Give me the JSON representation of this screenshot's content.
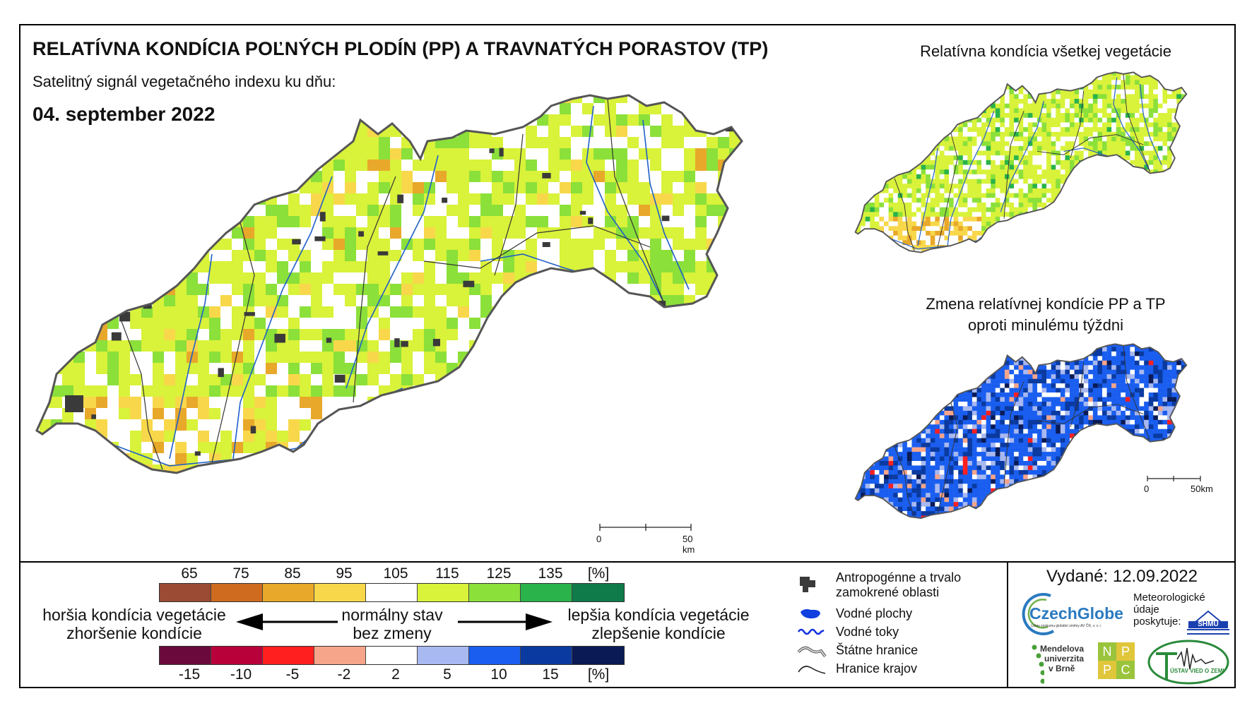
{
  "header": {
    "title": "RELATÍVNA KONDÍCIA POĽNÝCH PLODÍN (PP) A TRAVNATÝCH PORASTOV (TP)",
    "subtitle": "Satelitný signál vegetačného indexu ku dňu:",
    "date": "04. september 2022"
  },
  "side_maps": {
    "all_vegetation_title": "Relatívna kondícia všetkej vegetácie",
    "change_title_line1": "Zmena relatívnej kondície PP a TP",
    "change_title_line2": "oproti minulému týždni"
  },
  "scale": {
    "zero": "0",
    "main_label": "50 km",
    "small_label": "50km"
  },
  "legend_condition": {
    "ticks": [
      "65",
      "75",
      "85",
      "95",
      "105",
      "115",
      "125",
      "135",
      "[%]"
    ],
    "colors": [
      "#9b4a33",
      "#cf6b1f",
      "#e8a82a",
      "#f8d84a",
      "#ffffff",
      "#d9f23a",
      "#8be03a",
      "#29b34a",
      "#0f7a4a"
    ]
  },
  "legend_change": {
    "ticks": [
      "-15",
      "-10",
      "-5",
      "-2",
      "2",
      "5",
      "10",
      "15",
      "[%]"
    ],
    "colors": [
      "#6a0a3c",
      "#b8003a",
      "#ff1f1f",
      "#f7a58a",
      "#ffffff",
      "#a8b8f0",
      "#1a5ef0",
      "#0a3aa0",
      "#0a1a55"
    ]
  },
  "descriptions": {
    "worse_line1": "horšia kondícia vegetácie",
    "worse_line2": "zhoršenie kondície",
    "normal_line1": "normálny stav",
    "normal_line2": "bez zmeny",
    "better_line1": "lepšia kondícia vegetácie",
    "better_line2": "zlepšenie kondície"
  },
  "map_legend": {
    "urban_line1": "Antropogénne a trvalo",
    "urban_line2": "zamokrené oblasti",
    "water_bodies": "Vodné plochy",
    "rivers": "Vodné toky",
    "state_border": "Štátne hranice",
    "region_border": "Hranice krajov"
  },
  "issued": "Vydané: 12.09.2022",
  "logos": {
    "czechglobe": "CzechGlobe",
    "czechglobe_sub": "Ústav výzkumu globální změny AV ČR, v. v. i.",
    "meteo_line1": "Meteorologické",
    "meteo_line2": "údaje",
    "meteo_line3": "poskytuje:",
    "shmu": "SHMÚ",
    "mendel_line1": "Mendelova",
    "mendel_line2": "univerzita",
    "mendel_line3": "v Brně",
    "nppc": [
      "N",
      "P",
      "P",
      "C"
    ],
    "uvz": "ÚSTAV VIED O ZEMI"
  }
}
